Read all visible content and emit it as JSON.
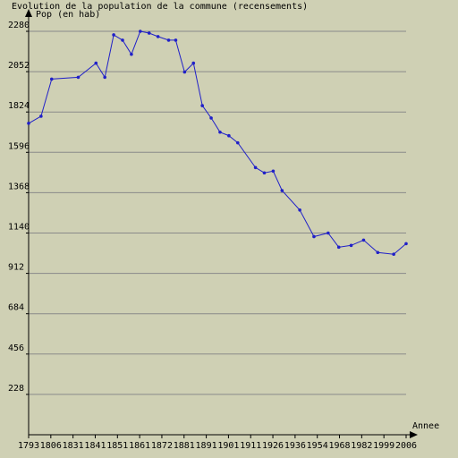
{
  "chart_data": {
    "type": "line",
    "title": "Evolution de la population de la commune (recensements)",
    "ylabel": "Pop (en hab)",
    "xlabel": "Annee",
    "ylim": [
      0,
      2280
    ],
    "yticks": [
      228,
      456,
      684,
      912,
      1140,
      1368,
      1596,
      1824,
      2052,
      2280
    ],
    "xtick_labels": [
      "1793",
      "1806",
      "1831",
      "1841",
      "1851",
      "1861",
      "1872",
      "1881",
      "1891",
      "1901",
      "1911",
      "1926",
      "1936",
      "1954",
      "1968",
      "1982",
      "1999",
      "2006"
    ],
    "grid": true,
    "line_color": "#2020c8",
    "series": [
      {
        "x": [
          1793,
          1800,
          1806,
          1821,
          1831,
          1836,
          1841,
          1846,
          1851,
          1856,
          1861,
          1866,
          1872,
          1876,
          1881,
          1886,
          1891,
          1896,
          1901,
          1906,
          1911,
          1921,
          1926,
          1931,
          1936,
          1946,
          1954,
          1962,
          1968,
          1975,
          1982,
          1990,
          1999,
          2006
        ],
        "values": [
          1760,
          1800,
          2010,
          2020,
          2100,
          2020,
          2260,
          2230,
          2150,
          2280,
          2270,
          2250,
          2230,
          2230,
          2050,
          2100,
          1860,
          1790,
          1710,
          1690,
          1650,
          1510,
          1480,
          1490,
          1380,
          1270,
          1120,
          1140,
          1060,
          1070,
          1100,
          1030,
          1020,
          1080
        ]
      }
    ]
  }
}
